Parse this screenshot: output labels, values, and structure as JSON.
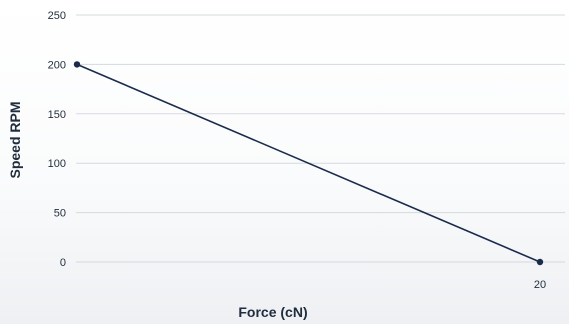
{
  "chart_data": {
    "type": "line",
    "title": "",
    "xlabel": "Force (cN)",
    "ylabel": "Speed RPM",
    "xlim": [
      0,
      20
    ],
    "ylim": [
      0,
      250
    ],
    "yticks": [
      0,
      50,
      100,
      150,
      200,
      250
    ],
    "xticks_labeled": [
      20
    ],
    "grid": true,
    "legend": "none",
    "line_color": "#1a2b4c",
    "grid_color": "#d5d9de",
    "series": [
      {
        "x": [
          0,
          20
        ],
        "y": [
          200,
          0
        ]
      }
    ]
  }
}
